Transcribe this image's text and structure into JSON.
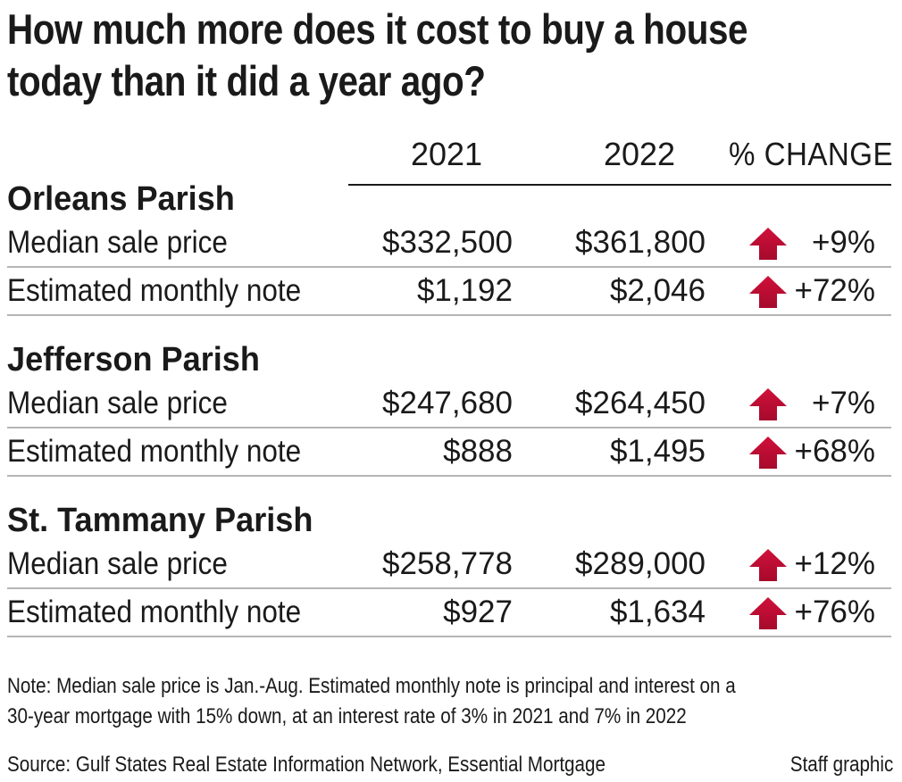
{
  "chart_data": {
    "type": "table",
    "title_lines": [
      "How much more does it cost to buy a house",
      "today than it did a year ago?"
    ],
    "columns": [
      "2021",
      "2022",
      "% CHANGE"
    ],
    "groups": [
      {
        "name": "Orleans Parish",
        "rows": [
          {
            "label": "Median sale price",
            "v2021": "$332,500",
            "v2022": "$361,800",
            "change": "+9%"
          },
          {
            "label": "Estimated monthly note",
            "v2021": "$1,192",
            "v2022": "$2,046",
            "change": "+72%"
          }
        ]
      },
      {
        "name": "Jefferson Parish",
        "rows": [
          {
            "label": "Median sale price",
            "v2021": "$247,680",
            "v2022": "$264,450",
            "change": "+7%"
          },
          {
            "label": "Estimated monthly note",
            "v2021": "$888",
            "v2022": "$1,495",
            "change": "+68%"
          }
        ]
      },
      {
        "name": "St. Tammany Parish",
        "rows": [
          {
            "label": "Median sale price",
            "v2021": "$258,778",
            "v2022": "$289,000",
            "change": "+12%"
          },
          {
            "label": "Estimated monthly note",
            "v2021": "$927",
            "v2022": "$1,634",
            "change": "+76%"
          }
        ]
      }
    ],
    "arrow_icon": "up-arrow-icon",
    "arrow_color": "#d0103a",
    "note_lines": [
      "Note: Median sale price is Jan.-Aug. Estimated monthly note is principal and interest on a",
      "30-year mortgage with 15% down, at an interest rate of 3% in 2021 and 7% in 2022"
    ],
    "source": "Source: Gulf States Real Estate Information Network, Essential Mortgage",
    "credit": "Staff graphic"
  }
}
